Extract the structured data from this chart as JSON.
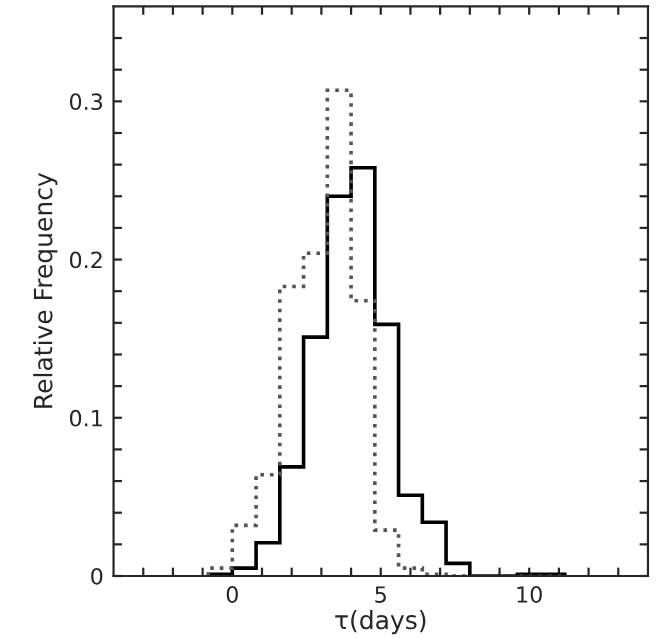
{
  "chart_data": {
    "type": "histogram",
    "xlabel": "τ(days)",
    "ylabel": "Relative Frequency",
    "bins": [
      -0.8,
      0,
      0.8,
      1.6,
      2.4,
      3.2,
      4.0,
      4.8,
      5.6,
      6.4,
      7.2,
      8.0,
      8.8,
      9.6,
      10.4,
      11.2
    ],
    "series": [
      {
        "color": "#000000",
        "line_style": "solid",
        "values": [
          0.001,
          0.005,
          0.021,
          0.069,
          0.151,
          0.24,
          0.258,
          0.159,
          0.051,
          0.034,
          0.008,
          0,
          0,
          0.001,
          0.001
        ]
      },
      {
        "color": "#555555",
        "line_style": "dotted",
        "values": [
          0.005,
          0.032,
          0.064,
          0.183,
          0.204,
          0.307,
          0.174,
          0.029,
          0.005,
          0.001,
          0,
          0,
          0,
          0,
          0
        ]
      }
    ],
    "xlim": [
      -4,
      14
    ],
    "ylim": [
      0,
      0.36
    ],
    "xticks": [
      {
        "value": -3,
        "label": null
      },
      {
        "value": -2,
        "label": null
      },
      {
        "value": -1,
        "label": null
      },
      0,
      {
        "value": 1,
        "label": null
      },
      {
        "value": 2,
        "label": null
      },
      {
        "value": 3,
        "label": null
      },
      {
        "value": 4,
        "label": null
      },
      5,
      {
        "value": 6,
        "label": null
      },
      {
        "value": 7,
        "label": null
      },
      {
        "value": 8,
        "label": null
      },
      {
        "value": 9,
        "label": null
      },
      10,
      {
        "value": 11,
        "label": null
      },
      {
        "value": 12,
        "label": null
      },
      {
        "value": 13,
        "label": null
      }
    ],
    "yticks": [
      0,
      {
        "value": 0.02,
        "label": null
      },
      {
        "value": 0.04,
        "label": null
      },
      {
        "value": 0.06,
        "label": null
      },
      {
        "value": 0.08,
        "label": null
      },
      0.1,
      {
        "value": 0.12,
        "label": null
      },
      {
        "value": 0.14,
        "label": null
      },
      {
        "value": 0.16,
        "label": null
      },
      {
        "value": 0.18,
        "label": null
      },
      0.2,
      {
        "value": 0.22,
        "label": null
      },
      {
        "value": 0.24,
        "label": null
      },
      {
        "value": 0.26,
        "label": null
      },
      {
        "value": 0.28,
        "label": null
      },
      0.3,
      {
        "value": 0.32,
        "label": null
      },
      {
        "value": 0.34,
        "label": null
      }
    ],
    "grid": false,
    "legend": false
  }
}
